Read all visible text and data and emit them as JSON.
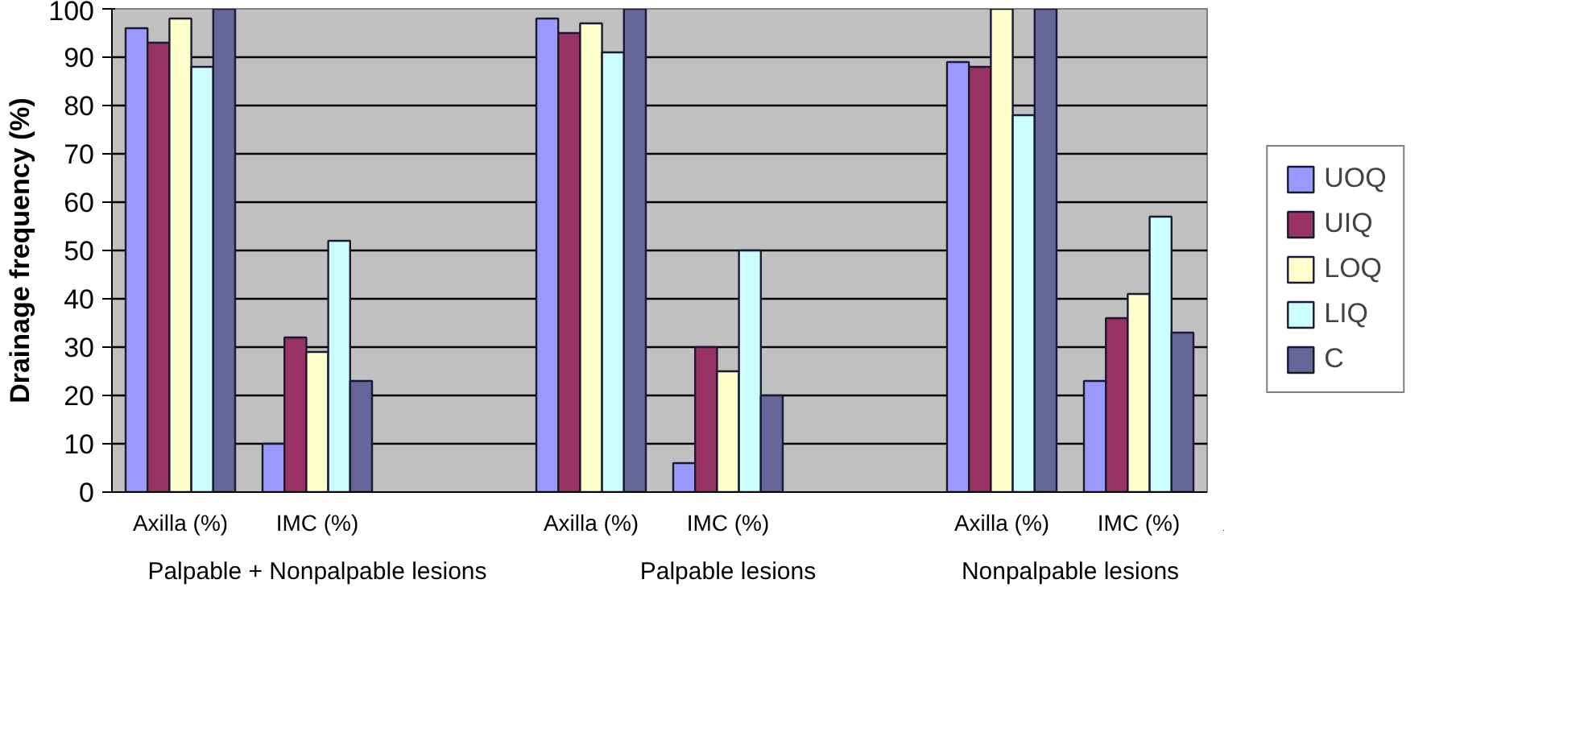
{
  "chart_data": {
    "type": "bar",
    "ylabel": "Drainage frequency (%)",
    "categories": [
      "Axilla (%)",
      "IMC (%)",
      null,
      "Axilla (%)",
      "IMC (%)",
      null,
      "Axilla (%)",
      "IMC (%)"
    ],
    "annotations": [
      "Palpable + Nonpalpable lesions",
      "Palpable lesions",
      "Nonpalpable lesions"
    ],
    "series": [
      {
        "name": "UOQ",
        "color": "#9999ff",
        "values": [
          96,
          10,
          null,
          98,
          6,
          null,
          89,
          23
        ]
      },
      {
        "name": "UIQ",
        "color": "#993366",
        "values": [
          93,
          32,
          null,
          95,
          30,
          null,
          88,
          36
        ]
      },
      {
        "name": "LOQ",
        "color": "#ffffcc",
        "values": [
          98,
          29,
          null,
          97,
          25,
          null,
          100,
          41
        ]
      },
      {
        "name": "LIQ",
        "color": "#ccffff",
        "values": [
          88,
          52,
          null,
          91,
          50,
          null,
          78,
          57
        ]
      },
      {
        "name": "C",
        "color": "#666699",
        "values": [
          100,
          23,
          null,
          100,
          20,
          null,
          100,
          33
        ]
      }
    ],
    "ylim": [
      0,
      100
    ],
    "yticks": [
      0,
      10,
      20,
      30,
      40,
      50,
      60,
      70,
      80,
      90,
      100
    ],
    "grid": "y",
    "legend": "right"
  }
}
